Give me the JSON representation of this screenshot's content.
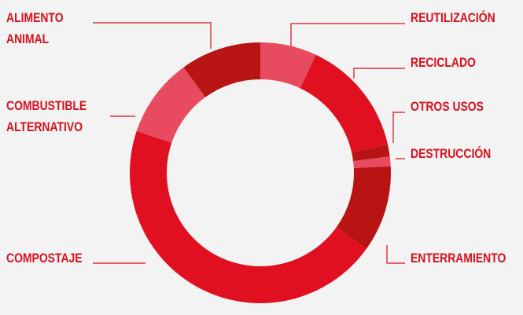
{
  "chart_data": {
    "type": "donut",
    "categories": [
      "REUTILIZACIÓN",
      "RECICLADO",
      "OTROS USOS",
      "DESTRUCCIÓN",
      "ENTERRAMIENTO",
      "COMPOSTAJE",
      "COMBUSTIBLE ALTERNATIVO",
      "ALIMENTO ANIMAL"
    ],
    "values": [
      7,
      14.5,
      1.5,
      1.2,
      10.7,
      45.3,
      9.8,
      10
    ],
    "colors": [
      "#e84a5f",
      "#e01020",
      "#b81414",
      "#e84a5f",
      "#b81414",
      "#e01020",
      "#e84a5f",
      "#b81414"
    ]
  }
}
